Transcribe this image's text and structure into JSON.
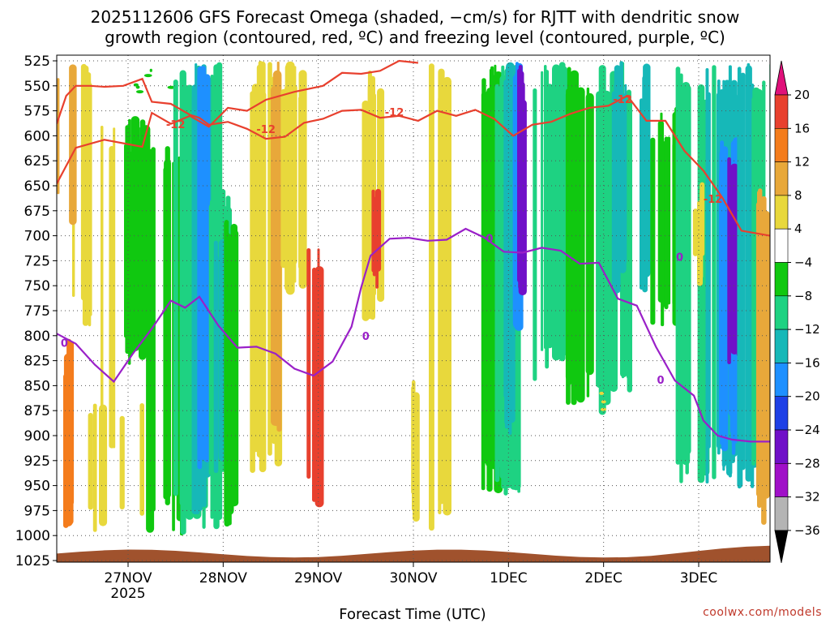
{
  "chart_data": {
    "type": "heatmap",
    "title_lines": [
      "2025112606 GFS Forecast Omega (shaded, −cm/s) for RJTT with dendritic snow",
      "growth region (contoured, red, ºC) and freezing level (contoured, purple, ºC)"
    ],
    "xlabel": "Forecast Time (UTC)",
    "credit": "coolwx.com/models",
    "x_ticks": [
      {
        "label": "27NOV",
        "sub": "2025",
        "t": 0.75
      },
      {
        "label": "28NOV",
        "t": 1.75
      },
      {
        "label": "29NOV",
        "t": 2.75
      },
      {
        "label": "30NOV",
        "t": 3.75
      },
      {
        "label": "1DEC",
        "t": 4.75
      },
      {
        "label": "2DEC",
        "t": 5.75
      },
      {
        "label": "3DEC",
        "t": 6.75
      }
    ],
    "x_range": [
      0,
      7.5
    ],
    "y_ticks": [
      525,
      550,
      575,
      600,
      625,
      650,
      675,
      700,
      725,
      750,
      775,
      800,
      825,
      850,
      875,
      900,
      925,
      950,
      975,
      1000,
      1025
    ],
    "y_range_hpa": [
      1025,
      525
    ],
    "colorbar": {
      "labels": [
        "20",
        "16",
        "12",
        "8",
        "4",
        "−4",
        "−8",
        "−12",
        "−16",
        "−20",
        "−24",
        "−28",
        "−32",
        "−36"
      ],
      "colors": [
        "#e8402e",
        "#f47c1c",
        "#e8a83a",
        "#e8d83c",
        "#ffffff",
        "#10c810",
        "#1ed282",
        "#16b8b8",
        "#1e90ff",
        "#1e40e6",
        "#7010c8",
        "#a010c8",
        "#b4b4b4"
      ],
      "top_arrow_color": "#e0107a",
      "bottom_arrow_color": "#000000"
    },
    "dgz_contour": {
      "color": "#e8402e",
      "label": "-12",
      "t": [
        0.0,
        0.1,
        0.2,
        0.35,
        0.5,
        0.7,
        0.9,
        1.0,
        1.2,
        1.4,
        1.5,
        1.6,
        1.8,
        2.0,
        2.2,
        2.4,
        2.6,
        2.8,
        3.0,
        3.2,
        3.4,
        3.6,
        3.8,
        4.0,
        4.2,
        4.4,
        4.6,
        4.8,
        5.0,
        5.2,
        5.4,
        5.6,
        5.8,
        6.0,
        6.2,
        6.4,
        6.6,
        6.8,
        7.0,
        7.2,
        7.5
      ],
      "p": [
        588,
        560,
        550,
        550,
        551,
        550,
        543,
        566,
        568,
        579,
        582,
        589,
        586,
        593,
        603,
        601,
        587,
        583,
        575,
        574,
        582,
        580,
        585,
        575,
        580,
        574,
        583,
        600,
        589,
        586,
        578,
        572,
        570,
        560,
        585,
        585,
        615,
        635,
        662,
        695,
        700
      ],
      "label_positions": [
        [
          1.25,
          589
        ],
        [
          2.2,
          594
        ],
        [
          3.55,
          577
        ],
        [
          5.95,
          564
        ],
        [
          6.9,
          664
        ]
      ]
    },
    "dgz_contour_upper": {
      "t": [
        0.0,
        0.2,
        0.5,
        0.9,
        1.0,
        1.2,
        1.4,
        1.6,
        1.8,
        2.0,
        2.2,
        2.5,
        2.8,
        3.0,
        3.2,
        3.4,
        3.6,
        3.8
      ],
      "p": [
        648,
        612,
        604,
        611,
        577,
        588,
        580,
        591,
        572,
        575,
        564,
        556,
        550,
        537,
        538,
        535,
        525,
        527
      ]
    },
    "freezing_contour": {
      "color": "#9a20c8",
      "label": "0",
      "t": [
        0.0,
        0.2,
        0.4,
        0.6,
        0.8,
        1.0,
        1.2,
        1.35,
        1.5,
        1.7,
        1.9,
        2.1,
        2.3,
        2.5,
        2.7,
        2.9,
        3.1,
        3.2,
        3.3,
        3.5,
        3.7,
        3.9,
        4.1,
        4.3,
        4.5,
        4.7,
        4.9,
        5.1,
        5.3,
        5.5,
        5.7,
        5.9,
        6.1,
        6.3,
        6.5,
        6.7,
        6.8,
        6.95,
        7.1,
        7.3,
        7.5
      ],
      "p": [
        798,
        808,
        829,
        846,
        818,
        793,
        765,
        772,
        761,
        790,
        812,
        811,
        818,
        833,
        840,
        826,
        791,
        752,
        720,
        703,
        702,
        705,
        704,
        693,
        702,
        716,
        717,
        712,
        715,
        728,
        727,
        763,
        770,
        811,
        845,
        860,
        885,
        900,
        904,
        906,
        906
      ],
      "label_positions": [
        [
          0.08,
          808
        ],
        [
          3.25,
          801
        ],
        [
          4.55,
          703
        ],
        [
          6.55,
          722
        ],
        [
          6.35,
          845
        ]
      ]
    },
    "surface": {
      "color": "#a0522d",
      "p_top": 1018
    }
  }
}
